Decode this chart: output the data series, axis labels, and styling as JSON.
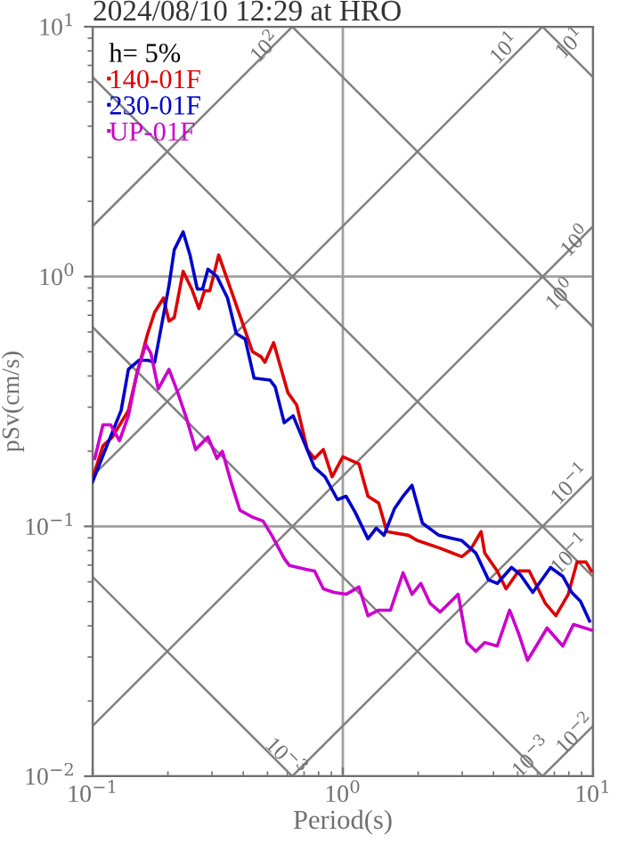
{
  "chart_data": {
    "type": "line",
    "title": "2024/08/10 12:29 at HRO",
    "xlabel": "Period(s)",
    "ylabel": "pSv(cm/s)",
    "legend_title": "h= 5%",
    "log": "xy",
    "grid": true,
    "legend": "top left",
    "xlim": [
      0.1,
      10
    ],
    "ylim": [
      0.01,
      10
    ],
    "xticks": [
      {
        "value": 0.1,
        "label": "10$^{−1}$"
      },
      {
        "value": 1,
        "label": "10$^{0}$"
      },
      {
        "value": 10,
        "label": "10$^{1}$"
      }
    ],
    "yticks": [
      {
        "value": 0.01,
        "label": "10$^{−2}$"
      },
      {
        "value": 0.1,
        "label": "10$^{−1}$"
      },
      {
        "value": 1,
        "label": "10$^{0}$"
      },
      {
        "value": 10,
        "label": "10$^{1}$"
      }
    ],
    "series": [
      {
        "color": "#808080",
        "x": [
          0.1,
          0.628
        ],
        "values": [
          1.59,
          10
        ]
      },
      {
        "color": "#808080",
        "x": [
          0.1,
          6.28
        ],
        "values": [
          0.159,
          10
        ]
      },
      {
        "color": "#808080",
        "x": [
          0.1,
          10
        ],
        "values": [
          0.0159,
          1.59
        ]
      },
      {
        "color": "#808080",
        "x": [
          0.628,
          10
        ],
        "values": [
          0.01,
          0.159
        ]
      },
      {
        "color": "#808080",
        "x": [
          6.28,
          10
        ],
        "values": [
          0.01,
          0.0159
        ]
      },
      {
        "color": "#808080",
        "x": [
          6.28,
          10
        ],
        "values": [
          10,
          6.28
        ]
      },
      {
        "color": "#808080",
        "x": [
          0.628,
          10
        ],
        "values": [
          10,
          0.628
        ]
      },
      {
        "color": "#808080",
        "x": [
          0.1,
          10
        ],
        "values": [
          6.28,
          0.0628
        ]
      },
      {
        "color": "#808080",
        "x": [
          0.1,
          6.28
        ],
        "values": [
          0.628,
          0.01
        ]
      },
      {
        "color": "#808080",
        "x": [
          0.1,
          0.628
        ],
        "values": [
          0.0628,
          0.01
        ]
      },
      {
        "name": "140-01F",
        "color": "#dd0000",
        "x": [
          0.1,
          0.11,
          0.12,
          0.139,
          0.15,
          0.166,
          0.177,
          0.192,
          0.202,
          0.212,
          0.23,
          0.249,
          0.266,
          0.28,
          0.294,
          0.319,
          0.346,
          0.388,
          0.435,
          0.472,
          0.488,
          0.529,
          0.603,
          0.654,
          0.721,
          0.771,
          0.836,
          0.906,
          1.0,
          1.16,
          1.26,
          1.39,
          1.5,
          1.83,
          1.99,
          2.42,
          2.99,
          3.24,
          3.57,
          3.69,
          4.14,
          4.49,
          5.04,
          5.56,
          6.44,
          7.1,
          7.96,
          8.63,
          9.37,
          9.84
        ],
        "values": [
          0.156,
          0.21,
          0.228,
          0.291,
          0.405,
          0.591,
          0.72,
          0.821,
          0.663,
          0.685,
          1.05,
          0.891,
          0.744,
          0.877,
          0.877,
          1.22,
          0.968,
          0.697,
          0.501,
          0.477,
          0.454,
          0.544,
          0.343,
          0.306,
          0.203,
          0.187,
          0.203,
          0.158,
          0.19,
          0.178,
          0.132,
          0.124,
          0.0953,
          0.0921,
          0.0877,
          0.0821,
          0.0756,
          0.0808,
          0.0953,
          0.0782,
          0.0663,
          0.0562,
          0.0663,
          0.0663,
          0.0493,
          0.0439,
          0.0535,
          0.072,
          0.072,
          0.0663
        ]
      },
      {
        "name": "230-01F",
        "color": "#0000cc",
        "x": [
          0.1,
          0.114,
          0.13,
          0.139,
          0.153,
          0.166,
          0.177,
          0.186,
          0.202,
          0.212,
          0.23,
          0.245,
          0.262,
          0.275,
          0.289,
          0.314,
          0.346,
          0.375,
          0.407,
          0.442,
          0.512,
          0.537,
          0.583,
          0.633,
          0.71,
          0.771,
          0.849,
          0.952,
          1.03,
          1.12,
          1.26,
          1.36,
          1.46,
          1.61,
          1.74,
          1.89,
          2.08,
          2.42,
          2.99,
          3.4,
          3.82,
          4.14,
          4.72,
          5.12,
          5.74,
          6.76,
          7.57,
          8.22,
          8.91,
          9.68
        ],
        "values": [
          0.151,
          0.21,
          0.291,
          0.425,
          0.462,
          0.462,
          0.454,
          0.591,
          0.921,
          1.28,
          1.51,
          1.22,
          0.891,
          0.891,
          1.07,
          1.0,
          0.821,
          0.591,
          0.562,
          0.392,
          0.385,
          0.361,
          0.26,
          0.277,
          0.21,
          0.172,
          0.158,
          0.128,
          0.132,
          0.114,
          0.0891,
          0.0984,
          0.0921,
          0.118,
          0.132,
          0.146,
          0.103,
          0.0921,
          0.0877,
          0.0782,
          0.0611,
          0.0591,
          0.0685,
          0.0641,
          0.0544,
          0.0685,
          0.0631,
          0.0544,
          0.0501,
          0.0418
        ]
      },
      {
        "name": "UP-01F",
        "color": "#cc00cc",
        "x": [
          0.102,
          0.11,
          0.118,
          0.128,
          0.139,
          0.15,
          0.163,
          0.171,
          0.183,
          0.202,
          0.219,
          0.238,
          0.258,
          0.289,
          0.314,
          0.33,
          0.357,
          0.388,
          0.435,
          0.48,
          0.52,
          0.583,
          0.612,
          0.71,
          0.771,
          0.836,
          0.922,
          1.03,
          1.16,
          1.26,
          1.39,
          1.55,
          1.74,
          1.89,
          2.05,
          2.23,
          2.45,
          2.89,
          3.13,
          3.4,
          3.69,
          4.14,
          4.64,
          5.04,
          5.47,
          5.93,
          6.55,
          7.57,
          8.35,
          9.84
        ],
        "values": [
          0.187,
          0.255,
          0.255,
          0.22,
          0.277,
          0.405,
          0.535,
          0.493,
          0.355,
          0.425,
          0.343,
          0.268,
          0.203,
          0.228,
          0.187,
          0.2,
          0.151,
          0.116,
          0.109,
          0.105,
          0.0921,
          0.0744,
          0.0697,
          0.0674,
          0.0663,
          0.0562,
          0.0544,
          0.0535,
          0.0572,
          0.0439,
          0.0462,
          0.0462,
          0.0652,
          0.0535,
          0.0591,
          0.0493,
          0.0454,
          0.0535,
          0.0343,
          0.0316,
          0.0343,
          0.0332,
          0.0462,
          0.0373,
          0.0291,
          0.0332,
          0.0392,
          0.0332,
          0.0405,
          0.0385
        ]
      }
    ],
    "annotations": [
      {
        "text": "10$^{2}$",
        "x": 0.495,
        "y": 8.2
      },
      {
        "text": "10$^{1}$",
        "x": 4.49,
        "y": 8.1
      },
      {
        "text": "10$^{1}$",
        "x": 8.2,
        "y": 8.5
      },
      {
        "text": "10$^{0}$",
        "x": 8.6,
        "y": 1.37
      },
      {
        "text": "10$^{0}$",
        "x": 7.5,
        "y": 0.837
      },
      {
        "text": "10$^{−1}$",
        "x": 8.2,
        "y": 0.146
      },
      {
        "text": "10$^{−1}$",
        "x": 8.2,
        "y": 0.0766
      },
      {
        "text": "10$^{−3}$",
        "x": 0.583,
        "y": 0.0118
      },
      {
        "text": "10$^{−3}$",
        "x": 5.74,
        "y": 0.0118
      },
      {
        "text": "10$^{−2}$",
        "x": 8.6,
        "y": 0.0146
      }
    ]
  }
}
